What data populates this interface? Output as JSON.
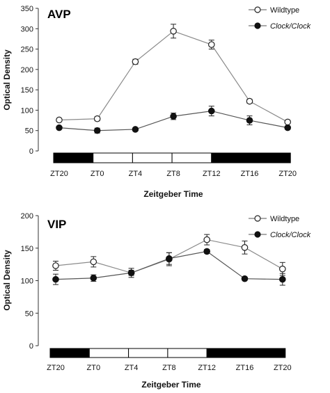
{
  "chart_data": [
    {
      "type": "line",
      "title": "AVP",
      "xlabel": "Zeitgeber Time",
      "ylabel": "Optical Density",
      "categories": [
        "ZT20",
        "ZT0",
        "ZT4",
        "ZT8",
        "ZT12",
        "ZT16",
        "ZT20"
      ],
      "ylim": [
        0,
        350
      ],
      "yticks": [
        0,
        50,
        100,
        150,
        200,
        250,
        300,
        350
      ],
      "legend_position": "top-right",
      "light_dark_bar": [
        "dark",
        "light",
        "light",
        "light",
        "dark",
        "dark"
      ],
      "series": [
        {
          "name": "Wildtype",
          "marker": "open-circle",
          "values": [
            76,
            79,
            219,
            294,
            261,
            122,
            71
          ],
          "errors": [
            4,
            5,
            6,
            17,
            11,
            5,
            4
          ]
        },
        {
          "name": "Clock/Clock",
          "marker": "filled-circle",
          "values": [
            57,
            50,
            53,
            85,
            98,
            75,
            57
          ],
          "errors": [
            3,
            6,
            3,
            8,
            12,
            11,
            4
          ]
        }
      ]
    },
    {
      "type": "line",
      "title": "VIP",
      "xlabel": "Zeitgeber Time",
      "ylabel": "Optical Density",
      "categories": [
        "ZT20",
        "ZT0",
        "ZT4",
        "ZT8",
        "ZT12",
        "ZT16",
        "ZT20"
      ],
      "ylim": [
        0,
        200
      ],
      "yticks": [
        0,
        50,
        100,
        150,
        200
      ],
      "legend_position": "top-right",
      "light_dark_bar": [
        "dark",
        "light",
        "light",
        "light",
        "dark",
        "dark"
      ],
      "series": [
        {
          "name": "Wildtype",
          "marker": "open-circle",
          "values": [
            123,
            129,
            112,
            133,
            163,
            151,
            118
          ],
          "errors": [
            7,
            8,
            7,
            10,
            8,
            10,
            10
          ]
        },
        {
          "name": "Clock/Clock",
          "marker": "filled-circle",
          "values": [
            102,
            104,
            112,
            134,
            145,
            103,
            102
          ],
          "errors": [
            8,
            5,
            4,
            9,
            3,
            2,
            9
          ]
        }
      ]
    }
  ]
}
